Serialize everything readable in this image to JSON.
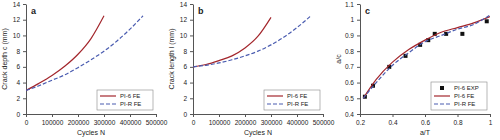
{
  "chart_data": [
    {
      "type": "line",
      "title": "a",
      "x_label": "Cycles N",
      "y_label": "Crack depth c (mm)",
      "xlim": [
        0,
        500000
      ],
      "ylim": [
        0,
        14
      ],
      "xticks": [
        0,
        100000,
        200000,
        300000,
        400000,
        500000
      ],
      "yticks": [
        0,
        2,
        4,
        6,
        8,
        10,
        12,
        14
      ],
      "grid": false,
      "legend": "lower right",
      "series": [
        {
          "name": "PI-6 FE",
          "color": "#a3262c",
          "line_style": "solid",
          "x": [
            0,
            50000,
            100000,
            150000,
            200000,
            250000,
            300000
          ],
          "values": [
            3,
            3.9,
            4.9,
            6.1,
            7.6,
            9.6,
            12.5
          ]
        },
        {
          "name": "PI-R FE",
          "color": "#4a5cb0",
          "line_style": "dashed",
          "x": [
            0,
            50000,
            100000,
            150000,
            200000,
            250000,
            300000,
            350000,
            400000,
            450000
          ],
          "values": [
            3,
            3.6,
            4.3,
            5.0,
            5.9,
            6.9,
            8.0,
            9.3,
            10.8,
            12.5
          ]
        }
      ]
    },
    {
      "type": "line",
      "title": "b",
      "x_label": "Cycles N",
      "y_label": "Crack length l (mm)",
      "xlim": [
        0,
        500000
      ],
      "ylim": [
        0,
        14
      ],
      "xticks": [
        0,
        100000,
        200000,
        300000,
        400000,
        500000
      ],
      "yticks": [
        0,
        2,
        4,
        6,
        8,
        10,
        12,
        14
      ],
      "grid": false,
      "legend": "lower right",
      "series": [
        {
          "name": "PI-6 FE",
          "color": "#a3262c",
          "line_style": "solid",
          "x": [
            0,
            50000,
            100000,
            150000,
            200000,
            250000,
            300000
          ],
          "values": [
            6,
            6.3,
            6.8,
            7.4,
            8.4,
            9.9,
            12.3
          ]
        },
        {
          "name": "PI-R FE",
          "color": "#4a5cb0",
          "line_style": "dashed",
          "x": [
            0,
            50000,
            100000,
            150000,
            200000,
            250000,
            300000,
            350000,
            400000,
            450000
          ],
          "values": [
            6,
            6.2,
            6.5,
            6.9,
            7.4,
            8.0,
            8.8,
            9.8,
            11.0,
            12.4
          ]
        }
      ]
    },
    {
      "type": "line",
      "title": "c",
      "x_label": "a/T",
      "y_label": "a/c",
      "xlim": [
        0.2,
        1
      ],
      "ylim": [
        0.4,
        1.1
      ],
      "xticks": [
        0.2,
        0.4,
        0.6,
        0.8,
        1
      ],
      "yticks": [
        0.4,
        0.5,
        0.6,
        0.7,
        0.8,
        0.9,
        1,
        1.1
      ],
      "grid": false,
      "legend": "lower right",
      "series": [
        {
          "name": "PI-6 EXP",
          "type": "scatter",
          "color": "#111111",
          "marker": "square",
          "x": [
            0.23,
            0.28,
            0.38,
            0.48,
            0.57,
            0.62,
            0.66,
            0.73,
            0.83,
            0.98
          ],
          "values": [
            0.51,
            0.58,
            0.7,
            0.77,
            0.84,
            0.87,
            0.91,
            0.91,
            0.91,
            0.99
          ]
        },
        {
          "name": "PI-6 FE",
          "color": "#a3262c",
          "line_style": "solid",
          "x": [
            0.22,
            0.3,
            0.4,
            0.5,
            0.6,
            0.7,
            0.8,
            0.9,
            1
          ],
          "values": [
            0.5,
            0.62,
            0.73,
            0.81,
            0.87,
            0.92,
            0.95,
            0.98,
            1.02
          ]
        },
        {
          "name": "PI-R FE",
          "color": "#4a5cb0",
          "line_style": "dashed",
          "x": [
            0.22,
            0.3,
            0.4,
            0.5,
            0.6,
            0.7,
            0.8,
            0.9,
            1
          ],
          "values": [
            0.5,
            0.6,
            0.71,
            0.79,
            0.86,
            0.9,
            0.94,
            0.97,
            1.03
          ]
        }
      ]
    }
  ]
}
